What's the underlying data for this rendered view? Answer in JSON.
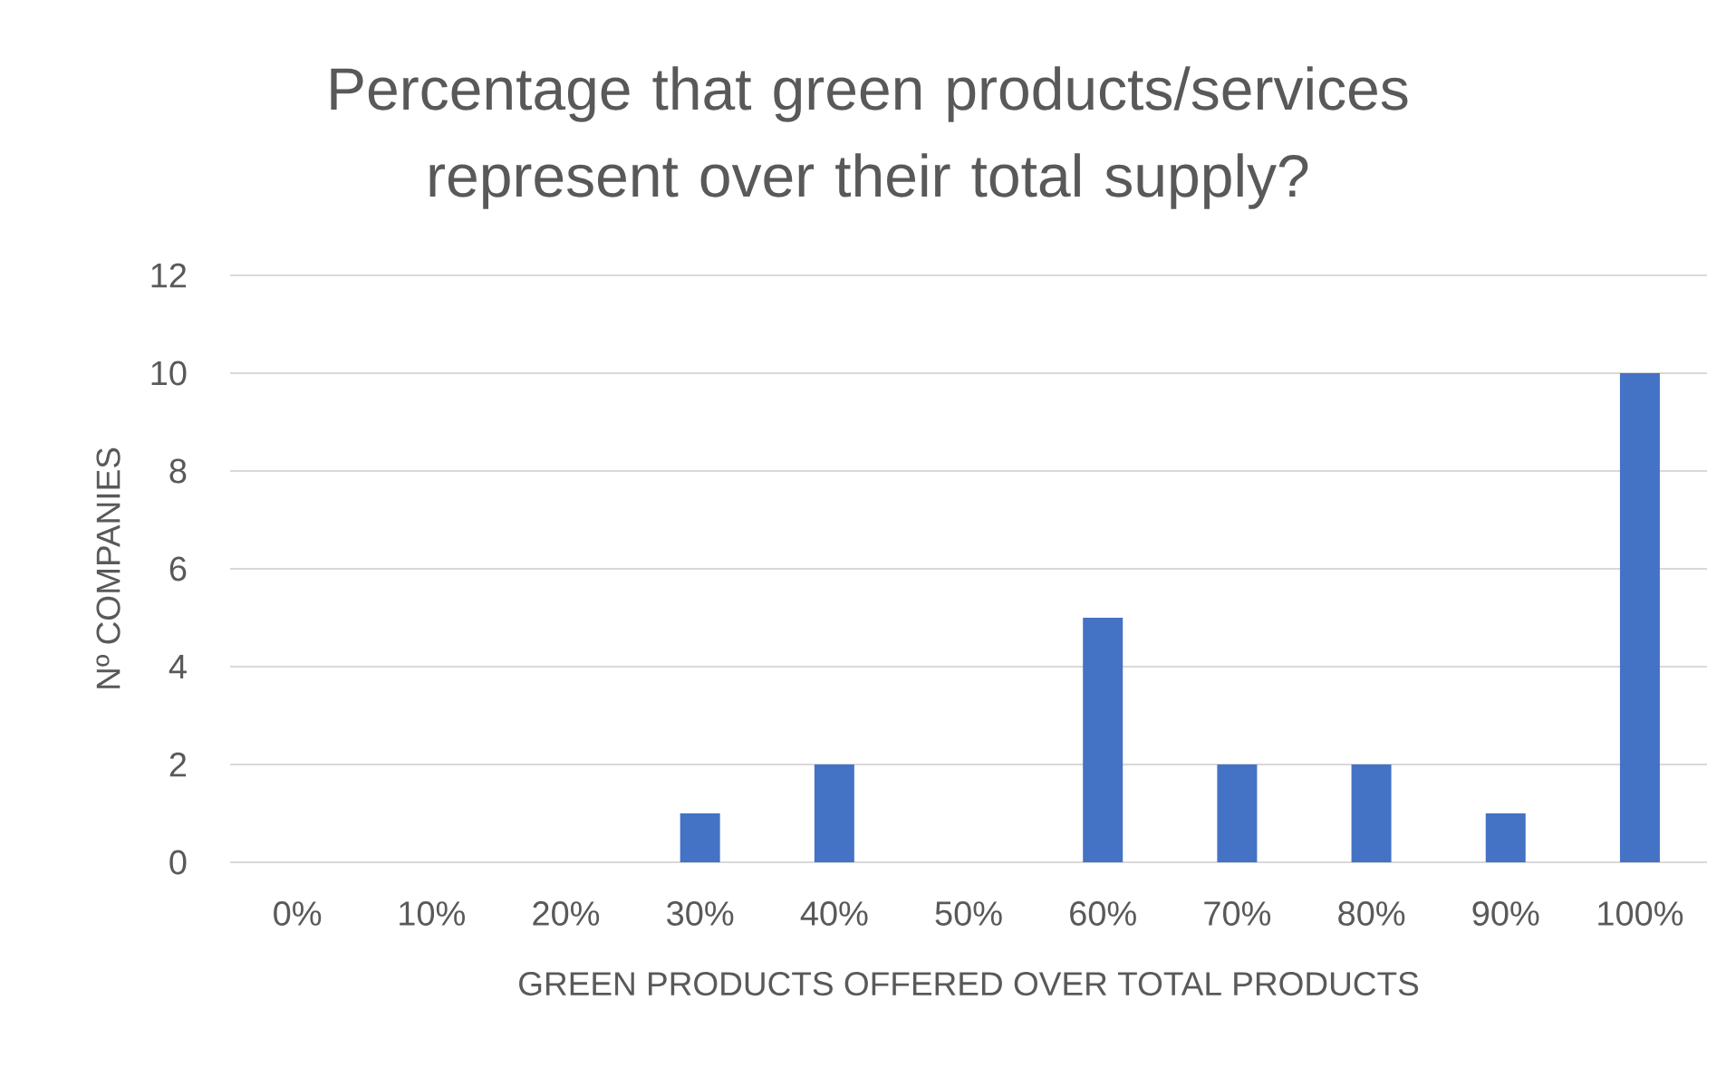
{
  "chart_data": {
    "type": "bar",
    "title": "Percentage that green products/services represent over their total supply?",
    "xlabel": "GREEN PRODUCTS OFFERED OVER TOTAL PRODUCTS",
    "ylabel": "Nº COMPANIES",
    "categories": [
      "0%",
      "10%",
      "20%",
      "30%",
      "40%",
      "50%",
      "60%",
      "70%",
      "80%",
      "90%",
      "100%"
    ],
    "values": [
      0,
      0,
      0,
      1,
      2,
      0,
      5,
      2,
      2,
      1,
      10
    ],
    "color": "#4472c4",
    "ylim": [
      0,
      12
    ],
    "yticks": [
      0,
      2,
      4,
      6,
      8,
      10,
      12
    ],
    "grid": "y"
  }
}
